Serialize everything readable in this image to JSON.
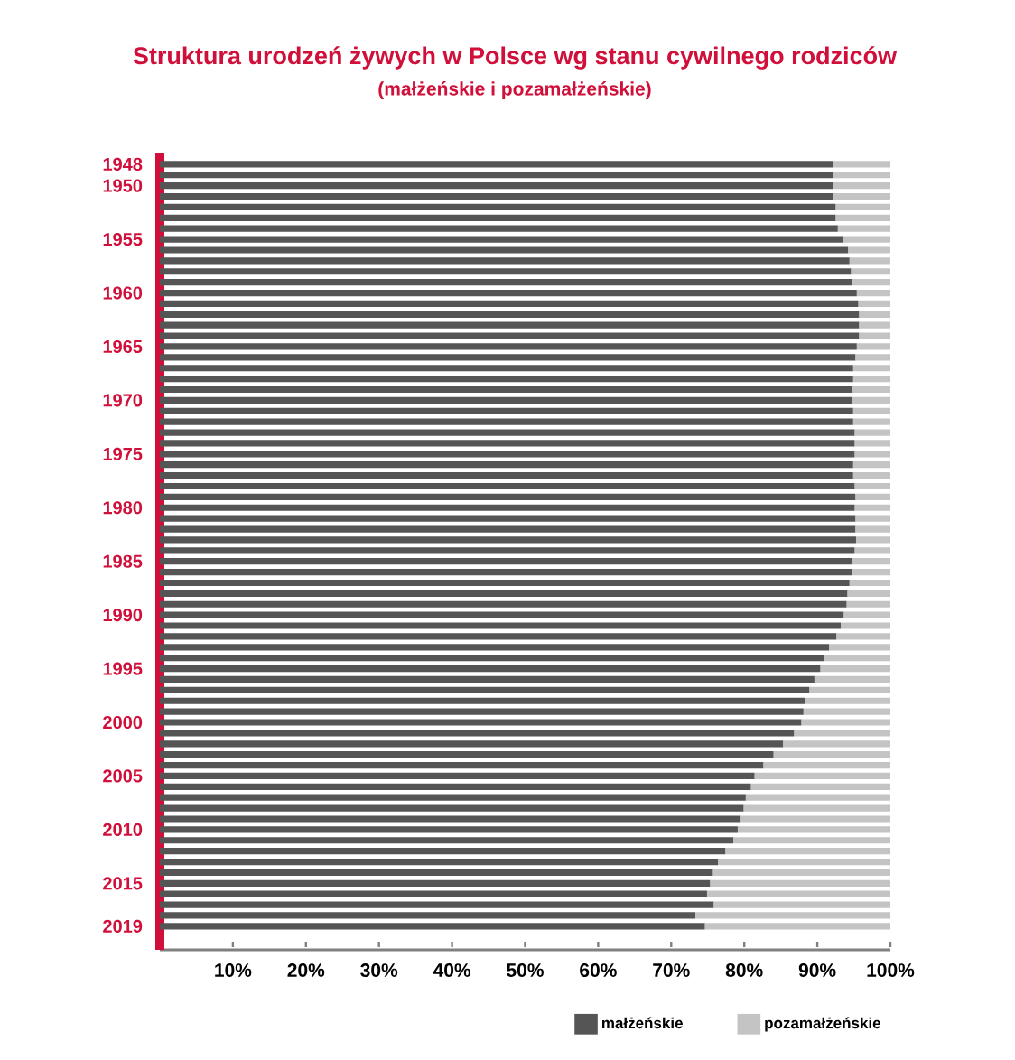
{
  "chart_data": {
    "type": "bar",
    "orientation": "horizontal",
    "stacked": true,
    "title": "Struktura urodzeń żywych w Polsce wg stanu cywilnego rodziców",
    "subtitle": "(małżeńskie i pozamałżeńskie)",
    "categories": [
      "1948",
      null,
      "1950",
      null,
      null,
      null,
      null,
      "1955",
      null,
      null,
      null,
      null,
      "1960",
      null,
      null,
      null,
      null,
      "1965",
      null,
      null,
      null,
      null,
      "1970",
      null,
      null,
      null,
      null,
      "1975",
      null,
      null,
      null,
      null,
      "1980",
      null,
      null,
      null,
      null,
      "1985",
      null,
      null,
      null,
      null,
      "1990",
      null,
      null,
      null,
      null,
      "1995",
      null,
      null,
      null,
      null,
      "2000",
      null,
      null,
      null,
      null,
      "2005",
      null,
      null,
      null,
      null,
      "2010",
      null,
      null,
      null,
      null,
      "2015",
      null,
      null,
      null,
      "2019"
    ],
    "series": [
      {
        "name": "małżeńskie",
        "color": "#555555",
        "values": [
          92.1,
          92.1,
          92.2,
          92.2,
          92.5,
          92.5,
          92.8,
          93.5,
          94.2,
          94.4,
          94.6,
          94.8,
          95.4,
          95.6,
          95.7,
          95.7,
          95.7,
          95.4,
          95.2,
          94.9,
          94.9,
          94.8,
          94.8,
          94.9,
          94.9,
          95.1,
          95.1,
          95.1,
          94.9,
          94.9,
          95.1,
          95.2,
          95.1,
          95.2,
          95.2,
          95.3,
          95.1,
          94.8,
          94.7,
          94.4,
          94.1,
          94.0,
          93.6,
          93.2,
          92.6,
          91.6,
          90.9,
          90.4,
          89.6,
          88.9,
          88.3,
          88.1,
          87.8,
          86.8,
          85.3,
          84.0,
          82.6,
          81.4,
          80.9,
          80.2,
          79.9,
          79.5,
          79.1,
          78.5,
          77.4,
          76.4,
          75.7,
          75.3,
          74.9,
          75.8,
          73.3,
          74.6
        ]
      },
      {
        "name": "pozamałżeńskie",
        "color": "#c4c4c4",
        "values": [
          7.9,
          7.9,
          7.8,
          7.8,
          7.5,
          7.5,
          7.2,
          6.5,
          5.8,
          5.6,
          5.4,
          5.2,
          4.6,
          4.4,
          4.3,
          4.3,
          4.3,
          4.6,
          4.8,
          5.1,
          5.1,
          5.2,
          5.2,
          5.1,
          5.1,
          4.9,
          4.9,
          4.9,
          5.1,
          5.1,
          4.9,
          4.8,
          4.9,
          4.8,
          4.8,
          4.7,
          4.9,
          5.2,
          5.3,
          5.6,
          5.9,
          6.0,
          6.4,
          6.8,
          7.4,
          8.4,
          9.1,
          9.6,
          10.4,
          11.1,
          11.7,
          11.9,
          12.2,
          13.2,
          14.7,
          16.0,
          17.4,
          18.6,
          19.1,
          19.8,
          20.1,
          20.5,
          20.9,
          21.5,
          22.6,
          23.6,
          24.3,
          24.7,
          25.1,
          24.2,
          26.7,
          25.4
        ]
      }
    ],
    "xlim": [
      0,
      100
    ],
    "xticks": [
      {
        "value": 10,
        "label": "10%"
      },
      {
        "value": 20,
        "label": "20%"
      },
      {
        "value": 30,
        "label": "30%"
      },
      {
        "value": 40,
        "label": "40%"
      },
      {
        "value": 50,
        "label": "50%"
      },
      {
        "value": 60,
        "label": "60%"
      },
      {
        "value": 70,
        "label": "70%"
      },
      {
        "value": 80,
        "label": "80%"
      },
      {
        "value": 90,
        "label": "90%"
      },
      {
        "value": 100,
        "label": "100%"
      }
    ],
    "legend": "bottom right"
  }
}
